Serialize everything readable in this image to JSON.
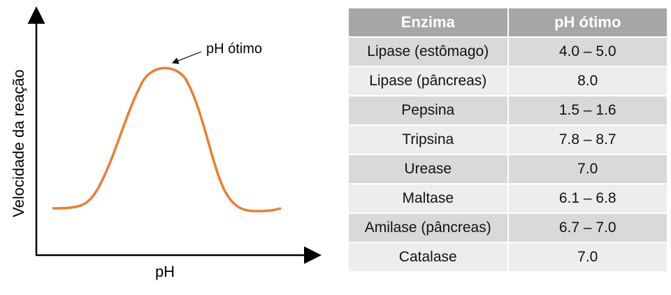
{
  "chart": {
    "ylabel": "Velocidade da reação",
    "xlabel": "pH",
    "annotation": "pH ótimo",
    "curve_color": "#ed7d31"
  },
  "table": {
    "headers": [
      "Enzima",
      "pH ótimo"
    ],
    "rows": [
      [
        "Lipase (estômago)",
        "4.0 – 5.0"
      ],
      [
        "Lipase (pâncreas)",
        "8.0"
      ],
      [
        "Pepsina",
        "1.5 – 1.6"
      ],
      [
        "Tripsina",
        "7.8 – 8.7"
      ],
      [
        "Urease",
        "7.0"
      ],
      [
        "Maltase",
        "6.1 – 6.8"
      ],
      [
        "Amilase (pâncreas)",
        "6.7 – 7.0"
      ],
      [
        "Catalase",
        "7.0"
      ]
    ]
  }
}
